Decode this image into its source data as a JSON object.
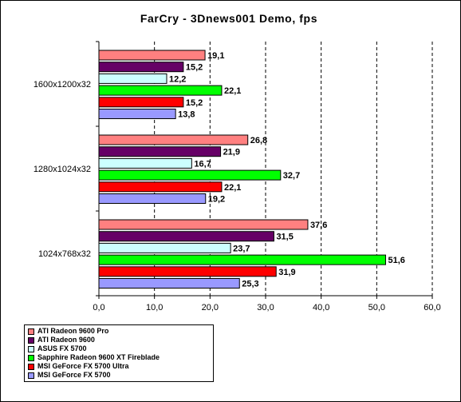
{
  "chart_data": {
    "type": "bar",
    "orientation": "horizontal",
    "title": "FarCry - 3Dnews001 Demo, fps",
    "categories": [
      "1600x1200x32",
      "1280x1024x32",
      "1024x768x32"
    ],
    "series": [
      {
        "name": "ATI Radeon 9600 Pro",
        "color": "#ff8080",
        "values": [
          19.1,
          26.8,
          37.6
        ],
        "labels": [
          "19,1",
          "26,8",
          "37,6"
        ]
      },
      {
        "name": "ATI Radeon 9600",
        "color": "#660066",
        "values": [
          15.2,
          21.9,
          31.5
        ],
        "labels": [
          "15,2",
          "21,9",
          "31,5"
        ]
      },
      {
        "name": "ASUS FX 5700",
        "color": "#ccffff",
        "values": [
          12.2,
          16.7,
          23.7
        ],
        "labels": [
          "12,2",
          "16,7",
          "23,7"
        ]
      },
      {
        "name": "Sapphire Radeon 9600 XT Fireblade",
        "color": "#00ff00",
        "values": [
          22.1,
          32.7,
          51.6
        ],
        "labels": [
          "22,1",
          "32,7",
          "51,6"
        ]
      },
      {
        "name": "MSI GeForce FX 5700 Ultra",
        "color": "#ff0000",
        "values": [
          15.2,
          22.1,
          31.9
        ],
        "labels": [
          "15,2",
          "22,1",
          "31,9"
        ]
      },
      {
        "name": "MSI GeForce FX 5700",
        "color": "#9999ff",
        "values": [
          13.8,
          19.2,
          25.3
        ],
        "labels": [
          "13,8",
          "19,2",
          "25,3"
        ]
      }
    ],
    "xlim": [
      0,
      60
    ],
    "xticks": [
      0,
      10,
      20,
      30,
      40,
      50,
      60
    ],
    "xtick_labels": [
      "0,0",
      "10,0",
      "20,0",
      "30,0",
      "40,0",
      "50,0",
      "60,0"
    ],
    "grid": "vertical dashed",
    "legend": "bottom-left"
  }
}
